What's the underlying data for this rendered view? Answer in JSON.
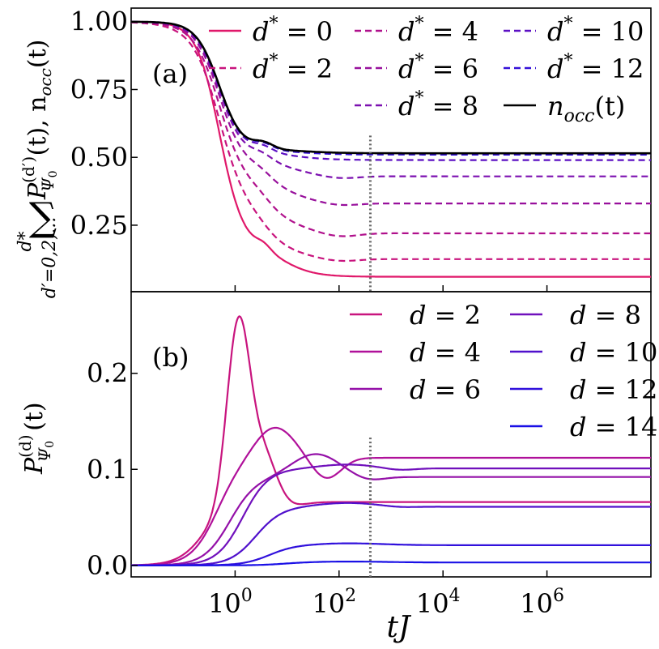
{
  "chart_data": [
    {
      "type": "line",
      "panel_label": "(a)",
      "ylabel": "Σ_{d'=0,2,...}^{d*} P_{Ψ0}^{(d')}(t),  n_occ(t)",
      "ylabel_parts": {
        "sum_symbol": "∑",
        "sum_top": "d*",
        "sum_bottom": "d′=0,2,...",
        "body": "P",
        "body_sup": "(d′)",
        "body_sub": "Ψ",
        "body_sub2": "0",
        "body_tail": "(t),  n",
        "body_tail_sub": "occ",
        "body_end": "(t)"
      },
      "xscale": "log",
      "xlim_log10": [
        -2,
        8
      ],
      "ylim": [
        0.005,
        1.05
      ],
      "yticks": [
        1.0,
        0.75,
        0.5,
        0.25
      ],
      "ytick_labels": [
        "1.00",
        "0.75",
        "0.50",
        "0.25"
      ],
      "vline_x": 400,
      "legend_location": "top-right",
      "series": [
        {
          "name": "d* = 0",
          "label_lhs": "d",
          "label_sup": "*",
          "label_rhs": " = 0",
          "color": "#e0186a",
          "style": "solid",
          "final": 0.06,
          "dip": 0.18,
          "dip_x_log10": 0.3
        },
        {
          "name": "d* = 2",
          "label_lhs": "d",
          "label_sup": "*",
          "label_rhs": " = 2",
          "color": "#c8147e",
          "style": "dashed",
          "final": 0.125,
          "dip": 0.115,
          "dip_x_log10": 2.0
        },
        {
          "name": "d* = 4",
          "label_lhs": "d",
          "label_sup": "*",
          "label_rhs": " = 4",
          "color": "#b0108c",
          "style": "dashed",
          "final": 0.22,
          "dip": 0.205,
          "dip_x_log10": 2.0
        },
        {
          "name": "d* = 6",
          "label_lhs": "d",
          "label_sup": "*",
          "label_rhs": " = 6",
          "color": "#98109c",
          "style": "dashed",
          "final": 0.33,
          "dip": 0.32,
          "dip_x_log10": 2.0
        },
        {
          "name": "d* = 8",
          "label_lhs": "d",
          "label_sup": "*",
          "label_rhs": " = 8",
          "color": "#7c10b0",
          "style": "dashed",
          "final": 0.43,
          "dip": 0.42,
          "dip_x_log10": 2.0
        },
        {
          "name": "d* = 10",
          "label_lhs": "d",
          "label_sup": "*",
          "label_rhs": " = 10",
          "color": "#5c10c4",
          "style": "dashed",
          "final": 0.49,
          "dip": 0.49,
          "dip_x_log10": 2.0
        },
        {
          "name": "d* = 12",
          "label_lhs": "d",
          "label_sup": "*",
          "label_rhs": " = 12",
          "color": "#3410d8",
          "style": "dashed",
          "final": 0.51,
          "dip": 0.51,
          "dip_x_log10": 2.0
        },
        {
          "name": "n_occ(t)",
          "label_lhs": "n",
          "label_sub": "occ",
          "label_rhs": "(t)",
          "color": "#000000",
          "style": "solid",
          "final": 0.515,
          "dip": 0.515,
          "dip_x_log10": 2.0
        }
      ]
    },
    {
      "type": "line",
      "panel_label": "(b)",
      "ylabel": "P_{Ψ0}^{(d)}(t)",
      "ylabel_parts": {
        "body": "P",
        "body_sup": "(d)",
        "body_sub": "Ψ",
        "body_sub2": "0",
        "body_end": "(t)"
      },
      "xlabel": "tJ",
      "xlabel_parts": {
        "a": "t",
        "b": "J"
      },
      "xscale": "log",
      "xlim_log10": [
        -2,
        8
      ],
      "xticks_log10": [
        0,
        2,
        4,
        6
      ],
      "xtick_labels": [
        "10^0",
        "10^2",
        "10^4",
        "10^6"
      ],
      "xtick_parts": [
        {
          "base": "10",
          "exp": "0"
        },
        {
          "base": "10",
          "exp": "2"
        },
        {
          "base": "10",
          "exp": "4"
        },
        {
          "base": "10",
          "exp": "6"
        }
      ],
      "ylim": [
        -0.012,
        0.285
      ],
      "yticks": [
        0.2,
        0.1,
        0.0
      ],
      "ytick_labels": [
        "0.2",
        "0.1",
        "0.0"
      ],
      "vline_x": 400,
      "legend_location": "top-right",
      "series": [
        {
          "name": "d = 2",
          "label_lhs": "d",
          "label_rhs": " = 2",
          "color": "#c8147e",
          "peak": 0.27,
          "peak_x_log10": 0.05,
          "final": 0.066,
          "undershoot": 0.062
        },
        {
          "name": "d = 4",
          "label_lhs": "d",
          "label_rhs": " = 4",
          "color": "#b0109a",
          "peak": 0.145,
          "peak_x_log10": 0.75,
          "final": 0.112,
          "undershoot": 0.09
        },
        {
          "name": "d = 6",
          "label_lhs": "d",
          "label_rhs": " = 6",
          "color": "#9410a8",
          "peak": 0.116,
          "peak_x_log10": 1.55,
          "final": 0.092,
          "undershoot": 0.088
        },
        {
          "name": "d = 8",
          "label_lhs": "d",
          "label_rhs": " = 8",
          "color": "#7010bc",
          "peak": 0.105,
          "peak_x_log10": 2.15,
          "final": 0.101,
          "undershoot": 0.099
        },
        {
          "name": "d = 10",
          "label_lhs": "d",
          "label_rhs": " = 10",
          "color": "#5010cc",
          "peak": 0.065,
          "peak_x_log10": 2.15,
          "final": 0.061,
          "undershoot": 0.06
        },
        {
          "name": "d = 12",
          "label_lhs": "d",
          "label_rhs": " = 12",
          "color": "#3010dc",
          "peak": 0.023,
          "peak_x_log10": 2.15,
          "final": 0.021,
          "undershoot": 0.021
        },
        {
          "name": "d = 14",
          "label_lhs": "d",
          "label_rhs": " = 14",
          "color": "#1a10e6",
          "peak": 0.004,
          "peak_x_log10": 2.15,
          "final": 0.003,
          "undershoot": 0.003
        }
      ]
    }
  ]
}
